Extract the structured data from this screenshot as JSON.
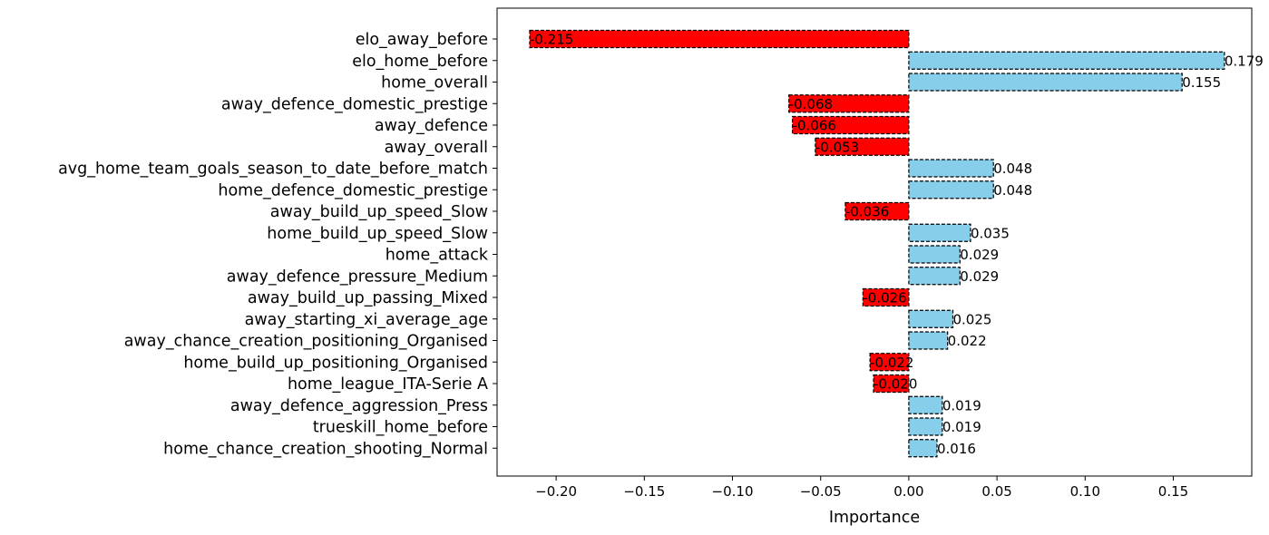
{
  "chart_data": {
    "type": "bar",
    "orientation": "horizontal",
    "xlabel": "Importance",
    "ylabel": "",
    "title": "",
    "xlim": [
      -0.2335,
      0.1945
    ],
    "xticks": [
      -0.2,
      -0.15,
      -0.1,
      -0.05,
      0.0,
      0.05,
      0.1,
      0.15
    ],
    "xtick_labels": [
      "−0.20",
      "−0.15",
      "−0.10",
      "−0.05",
      "0.00",
      "0.05",
      "0.10",
      "0.15"
    ],
    "grid": false,
    "colors": {
      "negative": "#ff0000",
      "positive": "#87ceeb",
      "edge": "#000000"
    },
    "categories": [
      "elo_away_before",
      "elo_home_before",
      "home_overall",
      "away_defence_domestic_prestige",
      "away_defence",
      "away_overall",
      "avg_home_team_goals_season_to_date_before_match",
      "home_defence_domestic_prestige",
      "away_build_up_speed_Slow",
      "home_build_up_speed_Slow",
      "home_attack",
      "away_defence_pressure_Medium",
      "away_build_up_passing_Mixed",
      "away_starting_xi_average_age",
      "away_chance_creation_positioning_Organised",
      "home_build_up_positioning_Organised",
      "home_league_ITA-Serie A",
      "away_defence_aggression_Press",
      "trueskill_home_before",
      "home_chance_creation_shooting_Normal"
    ],
    "values": [
      -0.215,
      0.179,
      0.155,
      -0.068,
      -0.066,
      -0.053,
      0.048,
      0.048,
      -0.036,
      0.035,
      0.029,
      0.029,
      -0.026,
      0.025,
      0.022,
      -0.022,
      -0.02,
      0.019,
      0.019,
      0.016
    ],
    "data_labels": [
      "-0.215",
      "0.179",
      "0.155",
      "-0.068",
      "-0.066",
      "-0.053",
      "0.048",
      "0.048",
      "-0.036",
      "0.035",
      "0.029",
      "0.029",
      "-0.026",
      "0.025",
      "0.022",
      "-0.022",
      "-0.020",
      "0.019",
      "0.019",
      "0.016"
    ]
  }
}
